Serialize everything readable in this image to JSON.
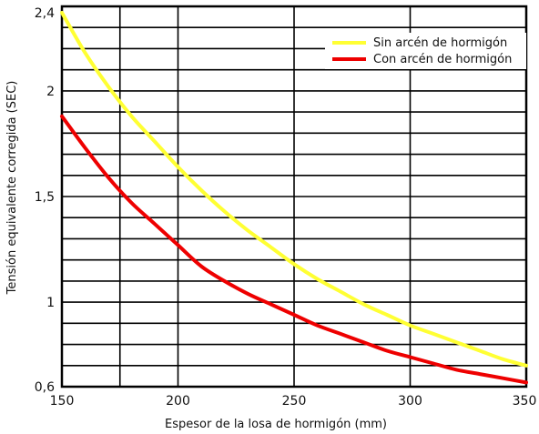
{
  "chart_data": {
    "type": "line",
    "xlabel": "Espesor de la losa de hormigón (mm)",
    "ylabel": "Tensión equivalente corregida (SEC)",
    "xlim": [
      150,
      350
    ],
    "ylim": [
      0.6,
      2.4
    ],
    "x_ticks": [
      150,
      200,
      250,
      300,
      350
    ],
    "x_tick_labels": [
      "150",
      "200",
      "250",
      "300",
      "350"
    ],
    "y_ticks": [
      0.6,
      1,
      1.5,
      2,
      2.4
    ],
    "y_tick_labels": [
      "0,6",
      "1",
      "1,5",
      "2",
      "2,4"
    ],
    "grid": true,
    "legend_position": "top-right",
    "series": [
      {
        "name": "Sin arcén de hormigón",
        "color": "#ffff33",
        "x": [
          150,
          160,
          170,
          180,
          190,
          200,
          210,
          220,
          230,
          240,
          250,
          260,
          270,
          280,
          290,
          300,
          310,
          320,
          330,
          340,
          350
        ],
        "values": [
          2.37,
          2.18,
          2.02,
          1.88,
          1.76,
          1.64,
          1.53,
          1.43,
          1.34,
          1.26,
          1.18,
          1.11,
          1.05,
          0.99,
          0.94,
          0.89,
          0.85,
          0.81,
          0.77,
          0.73,
          0.7
        ]
      },
      {
        "name": "Con arcén de hormigón",
        "color": "#ee0000",
        "x": [
          150,
          160,
          170,
          180,
          190,
          200,
          210,
          220,
          230,
          240,
          250,
          260,
          270,
          280,
          290,
          300,
          310,
          320,
          330,
          340,
          350
        ],
        "values": [
          1.88,
          1.73,
          1.59,
          1.47,
          1.37,
          1.27,
          1.17,
          1.1,
          1.04,
          0.99,
          0.94,
          0.89,
          0.85,
          0.81,
          0.77,
          0.74,
          0.71,
          0.68,
          0.66,
          0.64,
          0.62
        ]
      }
    ]
  }
}
